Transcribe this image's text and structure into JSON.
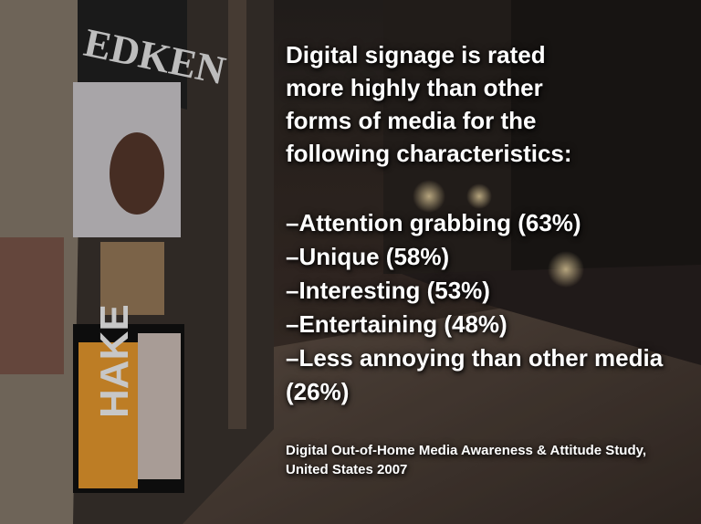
{
  "slide": {
    "heading_lines": [
      "Digital signage is rated",
      "more highly than other",
      "forms of media for the",
      "following characteristics:"
    ],
    "items": [
      "–Attention grabbing (63%)",
      "–Unique (58%)",
      "–Interesting (53%)",
      "–Entertaining (48%)",
      "–Less annoying than other media (26%)"
    ],
    "source": "Digital Out-of-Home Media Awareness & Attitude Study, United States 2007"
  },
  "scene": {
    "signs": [
      "EDKEN",
      "HAKE"
    ]
  }
}
